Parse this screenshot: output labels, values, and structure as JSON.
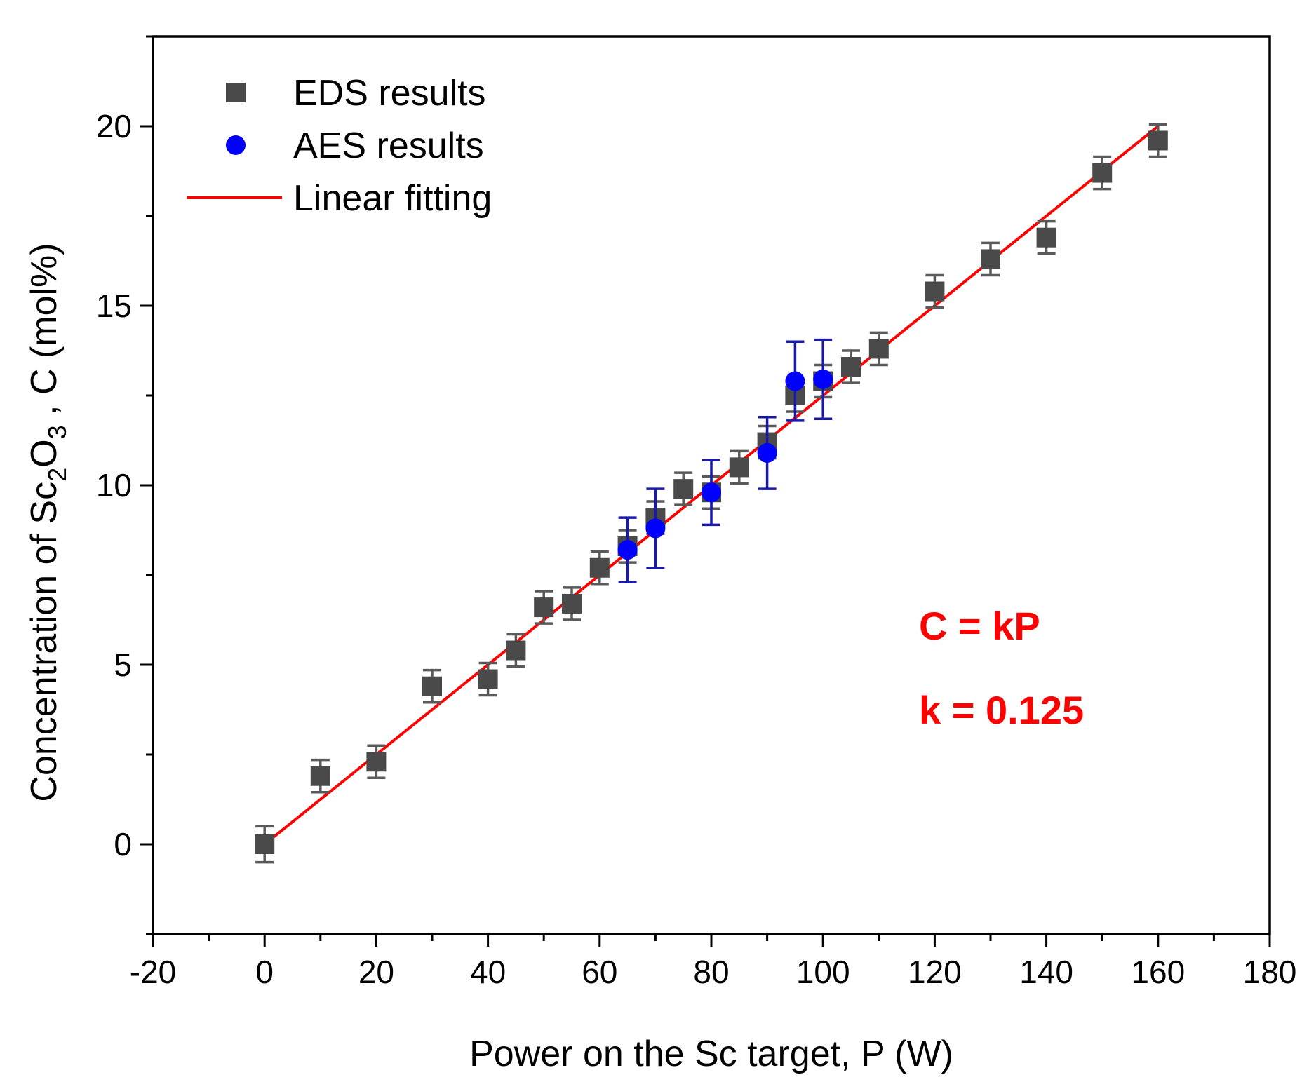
{
  "chart_data": {
    "type": "scatter",
    "xlabel": "Power on the Sc target, P (W)",
    "ylabel_parts": {
      "prefix": "Concentration of Sc",
      "sub1": "2",
      "mid": "O",
      "sub2": "3",
      "suffix": " , C (mol%)"
    },
    "xlim": [
      -20,
      180
    ],
    "ylim": [
      -2.5,
      22.5
    ],
    "x_ticks": [
      -20,
      0,
      20,
      40,
      60,
      80,
      100,
      120,
      140,
      160,
      180
    ],
    "y_ticks": [
      0,
      5,
      10,
      15,
      20
    ],
    "grid": false,
    "legend_position": "top-left",
    "series": [
      {
        "name": "EDS results",
        "marker": "square",
        "color": "#4a4a4a",
        "points": [
          {
            "x": 0,
            "y": 0.0,
            "err": 0.5
          },
          {
            "x": 10,
            "y": 1.9,
            "err": 0.45
          },
          {
            "x": 20,
            "y": 2.3,
            "err": 0.45
          },
          {
            "x": 30,
            "y": 4.4,
            "err": 0.45
          },
          {
            "x": 40,
            "y": 4.6,
            "err": 0.45
          },
          {
            "x": 45,
            "y": 5.4,
            "err": 0.45
          },
          {
            "x": 50,
            "y": 6.6,
            "err": 0.45
          },
          {
            "x": 55,
            "y": 6.7,
            "err": 0.45
          },
          {
            "x": 60,
            "y": 7.7,
            "err": 0.45
          },
          {
            "x": 65,
            "y": 8.3,
            "err": 0.45
          },
          {
            "x": 70,
            "y": 9.1,
            "err": 0.45
          },
          {
            "x": 75,
            "y": 9.9,
            "err": 0.45
          },
          {
            "x": 80,
            "y": 9.8,
            "err": 0.45
          },
          {
            "x": 85,
            "y": 10.5,
            "err": 0.45
          },
          {
            "x": 90,
            "y": 11.2,
            "err": 0.45
          },
          {
            "x": 95,
            "y": 12.5,
            "err": 0.45
          },
          {
            "x": 100,
            "y": 12.9,
            "err": 0.45
          },
          {
            "x": 105,
            "y": 13.3,
            "err": 0.45
          },
          {
            "x": 110,
            "y": 13.8,
            "err": 0.45
          },
          {
            "x": 120,
            "y": 15.4,
            "err": 0.45
          },
          {
            "x": 130,
            "y": 16.3,
            "err": 0.45
          },
          {
            "x": 140,
            "y": 16.9,
            "err": 0.45
          },
          {
            "x": 150,
            "y": 18.7,
            "err": 0.45
          },
          {
            "x": 160,
            "y": 19.6,
            "err": 0.45
          }
        ]
      },
      {
        "name": "AES results",
        "marker": "circle",
        "color": "#0000ff",
        "points": [
          {
            "x": 65,
            "y": 8.2,
            "err": 0.9
          },
          {
            "x": 70,
            "y": 8.8,
            "err": 1.1
          },
          {
            "x": 80,
            "y": 9.8,
            "err": 0.9
          },
          {
            "x": 90,
            "y": 10.9,
            "err": 1.0
          },
          {
            "x": 95,
            "y": 12.9,
            "err": 1.1
          },
          {
            "x": 100,
            "y": 12.95,
            "err": 1.1
          }
        ]
      },
      {
        "name": "Linear fitting",
        "marker": "line",
        "color": "#ff0000",
        "slope": 0.125,
        "x_range": [
          0,
          160
        ]
      }
    ],
    "annotations": [
      "C = kP",
      "k = 0.125"
    ]
  }
}
